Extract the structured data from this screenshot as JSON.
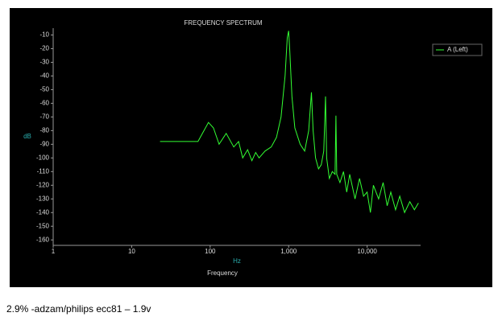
{
  "chart_data": {
    "type": "line",
    "title": "FREQUENCY SPECTRUM",
    "x_label": "Hz",
    "x_title": "Frequency",
    "y_label": "dB",
    "log_x": true,
    "legend": "top-right",
    "xlim": [
      1,
      48000
    ],
    "xticks": [
      1,
      10,
      100,
      {
        "value": 1000,
        "label": "1,000"
      },
      {
        "value": 10000,
        "label": "10,000"
      }
    ],
    "ylim": [
      -164,
      -5
    ],
    "yticks": [
      -10,
      -20,
      -30,
      -40,
      -50,
      -60,
      -70,
      -80,
      -90,
      -100,
      -110,
      -120,
      -130,
      -140,
      -150,
      -160
    ],
    "x": [
      23,
      70,
      95,
      110,
      130,
      160,
      200,
      230,
      260,
      300,
      340,
      380,
      420,
      500,
      600,
      700,
      800,
      900,
      960,
      1000,
      1030,
      1100,
      1200,
      1400,
      1600,
      1800,
      1950,
      2050,
      2200,
      2400,
      2600,
      2800,
      2950,
      3050,
      3300,
      3600,
      3900,
      4000,
      4100,
      4500,
      5000,
      5500,
      6000,
      7000,
      8000,
      9000,
      10000,
      11000,
      12000,
      14000,
      16000,
      18000,
      20000,
      23000,
      26000,
      30000,
      35000,
      40000,
      45000
    ],
    "series": [
      {
        "name": "A (Left)",
        "color": "#33ff33",
        "values": [
          -88,
          -88,
          -74,
          -78,
          -90,
          -82,
          -92,
          -88,
          -100,
          -94,
          -102,
          -96,
          -100,
          -95,
          -92,
          -85,
          -70,
          -40,
          -12,
          -7,
          -20,
          -55,
          -78,
          -90,
          -95,
          -80,
          -52,
          -80,
          -100,
          -108,
          -105,
          -95,
          -55,
          -100,
          -115,
          -110,
          -112,
          -69,
          -112,
          -118,
          -110,
          -125,
          -112,
          -130,
          -115,
          -128,
          -125,
          -140,
          -120,
          -130,
          -118,
          -135,
          -125,
          -138,
          -128,
          -140,
          -132,
          -138,
          -133
        ]
      }
    ]
  },
  "caption": "2.9% -adzam/philips  ecc81 – 1.9v"
}
